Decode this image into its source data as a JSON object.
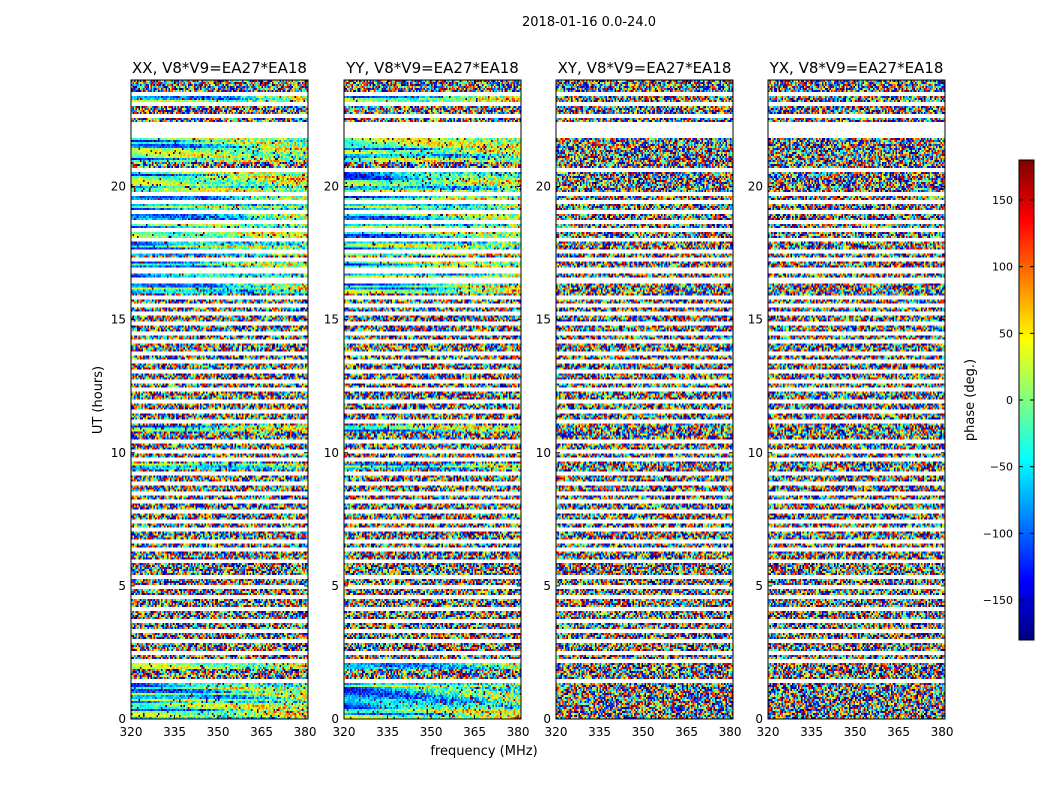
{
  "figure": {
    "suptitle": "2018-01-16 0.0-24.0",
    "xlabel": "frequency (MHz)",
    "ylabel": "UT (hours)"
  },
  "chart_data": [
    {
      "type": "heatmap",
      "title": "XX, V8*V9=EA27*EA18",
      "xlim": [
        320,
        381
      ],
      "ylim": [
        0,
        24
      ],
      "xticks": [
        320,
        335,
        350,
        365,
        380
      ],
      "yticks": [
        0,
        5,
        10,
        15,
        20
      ],
      "structured_bands_hours": [
        [
          0.0,
          1.4
        ],
        [
          1.9,
          2.1
        ],
        [
          9.4,
          9.6
        ],
        [
          10.8,
          11.0
        ],
        [
          16.0,
          17.2
        ],
        [
          17.4,
          20.6
        ],
        [
          20.9,
          21.9
        ],
        [
          23.0,
          23.4
        ]
      ]
    },
    {
      "type": "heatmap",
      "title": "YY, V8*V9=EA27*EA18",
      "xlim": [
        320,
        381
      ],
      "ylim": [
        0,
        24
      ],
      "xticks": [
        320,
        335,
        350,
        365,
        380
      ],
      "yticks": [
        0,
        5,
        10,
        15,
        20
      ],
      "structured_bands_hours": [
        [
          0.0,
          1.4
        ],
        [
          1.9,
          2.1
        ],
        [
          9.4,
          9.6
        ],
        [
          10.8,
          11.0
        ],
        [
          16.0,
          17.2
        ],
        [
          17.4,
          20.6
        ],
        [
          20.9,
          21.9
        ],
        [
          23.0,
          23.4
        ]
      ]
    },
    {
      "type": "heatmap",
      "title": "XY, V8*V9=EA27*EA18",
      "xlim": [
        320,
        381
      ],
      "ylim": [
        0,
        24
      ],
      "xticks": [
        320,
        335,
        350,
        365,
        380
      ],
      "yticks": [
        0,
        5,
        10,
        15,
        20
      ],
      "structured_bands_hours": []
    },
    {
      "type": "heatmap",
      "title": "YX, V8*V9=EA27*EA18",
      "xlim": [
        320,
        381
      ],
      "ylim": [
        0,
        24
      ],
      "xticks": [
        320,
        335,
        350,
        365,
        380
      ],
      "yticks": [
        0,
        5,
        10,
        15,
        20
      ],
      "structured_bands_hours": []
    }
  ],
  "gap_rows_hours": [
    1.4,
    2.15,
    2.45,
    2.9,
    3.3,
    3.65,
    4.15,
    4.55,
    4.95,
    5.35,
    5.95,
    6.35,
    6.65,
    7.1,
    7.45,
    7.8,
    8.15,
    8.45,
    8.85,
    9.2,
    9.75,
    10.05,
    10.45,
    11.2,
    11.55,
    11.95,
    12.35,
    12.65,
    13.05,
    13.4,
    13.75,
    14.15,
    14.5,
    14.85,
    15.2,
    15.55,
    15.85,
    16.45,
    16.85,
    17.25,
    17.55,
    18.0,
    18.35,
    18.7,
    19.05,
    19.4,
    19.75,
    20.6,
    21.9,
    22.35,
    22.65,
    23.1,
    23.5
  ],
  "colorbar": {
    "label": "phase (deg.)",
    "range": [
      -180,
      180
    ],
    "ticks": [
      -150,
      -100,
      -50,
      0,
      50,
      100,
      150
    ],
    "tick_labels": [
      "−150",
      "−100",
      "−50",
      "0",
      "50",
      "100",
      "150"
    ],
    "colors": [
      "#00007f",
      "#0000ff",
      "#0080ff",
      "#00ffff",
      "#80ff80",
      "#ffff00",
      "#ff8000",
      "#ff0000",
      "#7f0000"
    ]
  }
}
